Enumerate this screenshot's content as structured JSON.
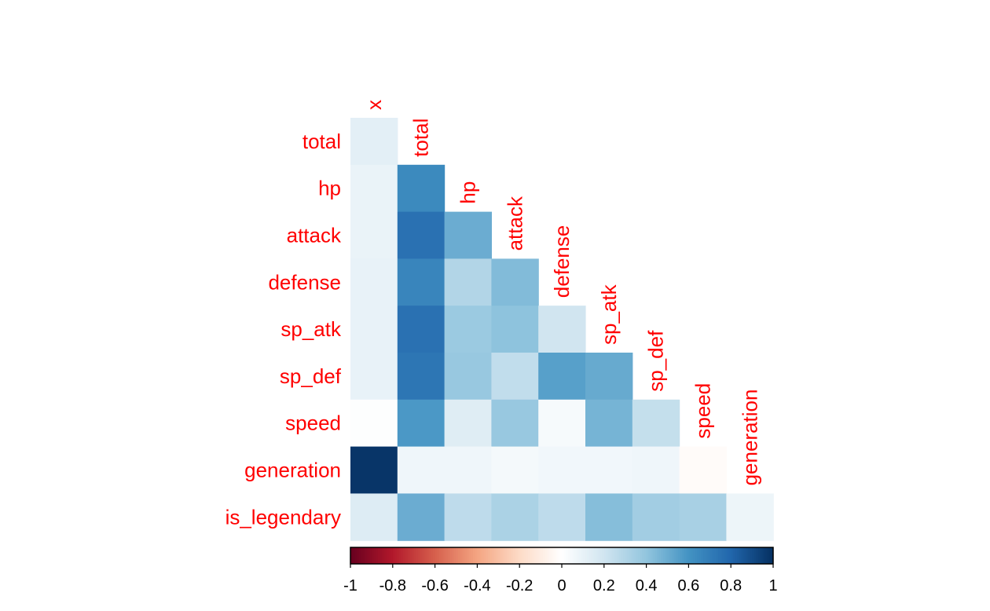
{
  "chart_data": {
    "type": "heatmap",
    "title": "",
    "xlabel": "",
    "ylabel": "",
    "row_labels": [
      "total",
      "hp",
      "attack",
      "defense",
      "sp_atk",
      "sp_def",
      "speed",
      "generation",
      "is_legendary"
    ],
    "col_labels": [
      "x",
      "total",
      "hp",
      "attack",
      "defense",
      "sp_atk",
      "sp_def",
      "speed",
      "generation"
    ],
    "layout": "lower-triangle",
    "values": [
      [
        0.12
      ],
      [
        0.09,
        0.64
      ],
      [
        0.09,
        0.75,
        0.5
      ],
      [
        0.1,
        0.66,
        0.3,
        0.44
      ],
      [
        0.1,
        0.75,
        0.37,
        0.41,
        0.2
      ],
      [
        0.1,
        0.73,
        0.38,
        0.25,
        0.55,
        0.51
      ],
      [
        0.01,
        0.58,
        0.14,
        0.38,
        0.04,
        0.47,
        0.24
      ],
      [
        0.98,
        0.07,
        0.07,
        0.05,
        0.06,
        0.06,
        0.07,
        -0.02
      ],
      [
        0.15,
        0.5,
        0.26,
        0.32,
        0.26,
        0.43,
        0.35,
        0.33,
        0.08
      ]
    ],
    "color_scale": {
      "range": [
        -1,
        1
      ],
      "ticks": [
        "-1",
        "-0.8",
        "-0.6",
        "-0.4",
        "-0.2",
        "0",
        "0.2",
        "0.4",
        "0.6",
        "0.8",
        "1"
      ],
      "stops": [
        "#67001F",
        "#B2182B",
        "#D6604D",
        "#F4A582",
        "#FDDBC7",
        "#FFFFFF",
        "#D1E5F0",
        "#92C5DE",
        "#4393C3",
        "#2166AC",
        "#053061"
      ]
    },
    "label_color": "#FF0000"
  }
}
